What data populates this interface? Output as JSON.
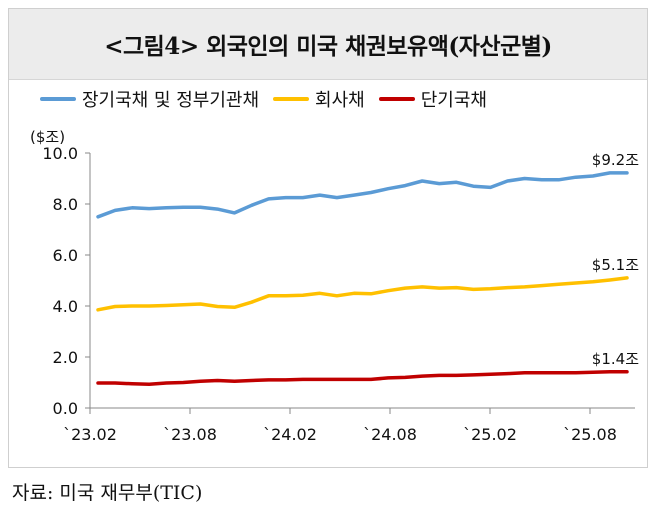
{
  "title": "<그림4> 외국인의 미국 채권보유액(자산군별)",
  "source": "자료: 미국 재무부(TIC)",
  "chart_data": {
    "type": "line",
    "ylabel": "($조)",
    "ylim": [
      0,
      10
    ],
    "yticks": [
      "0.0",
      "2.0",
      "4.0",
      "6.0",
      "8.0",
      "10.0"
    ],
    "xtick_labels": [
      "`23.02",
      "`23.08",
      "`24.02",
      "`24.08",
      "`25.02",
      "`25.08"
    ],
    "x": [
      "2023-02",
      "2023-03",
      "2023-04",
      "2023-05",
      "2023-06",
      "2023-07",
      "2023-08",
      "2023-09",
      "2023-10",
      "2023-11",
      "2023-12",
      "2024-01",
      "2024-02",
      "2024-03",
      "2024-04",
      "2024-05",
      "2024-06",
      "2024-07",
      "2024-08",
      "2024-09",
      "2024-10",
      "2024-11",
      "2024-12",
      "2025-01",
      "2025-02",
      "2025-03",
      "2025-04",
      "2025-05",
      "2025-06",
      "2025-07",
      "2025-08",
      "2025-09"
    ],
    "series": [
      {
        "name": "장기국채 및 정부기관채",
        "color": "#5b9bd5",
        "values": [
          7.5,
          7.75,
          7.85,
          7.82,
          7.85,
          7.87,
          7.87,
          7.8,
          7.65,
          7.95,
          8.2,
          8.25,
          8.25,
          8.35,
          8.25,
          8.35,
          8.45,
          8.6,
          8.72,
          8.9,
          8.8,
          8.85,
          8.7,
          8.65,
          8.9,
          9.0,
          8.95,
          8.95,
          9.05,
          9.1,
          9.22,
          9.22
        ],
        "end_label": "$9.2조"
      },
      {
        "name": "회사채",
        "color": "#ffc000",
        "values": [
          3.85,
          3.98,
          4.0,
          4.0,
          4.02,
          4.05,
          4.08,
          3.98,
          3.95,
          4.15,
          4.4,
          4.4,
          4.42,
          4.5,
          4.4,
          4.5,
          4.48,
          4.6,
          4.7,
          4.75,
          4.7,
          4.72,
          4.65,
          4.68,
          4.72,
          4.75,
          4.8,
          4.85,
          4.9,
          4.95,
          5.02,
          5.1
        ],
        "end_label": "$5.1조"
      },
      {
        "name": "단기국채",
        "color": "#c00000",
        "values": [
          0.98,
          0.98,
          0.95,
          0.93,
          0.98,
          1.0,
          1.05,
          1.08,
          1.05,
          1.08,
          1.1,
          1.1,
          1.12,
          1.12,
          1.12,
          1.12,
          1.12,
          1.18,
          1.2,
          1.25,
          1.28,
          1.28,
          1.3,
          1.32,
          1.35,
          1.38,
          1.38,
          1.38,
          1.38,
          1.4,
          1.42,
          1.42
        ],
        "end_label": "$1.4조"
      }
    ]
  }
}
